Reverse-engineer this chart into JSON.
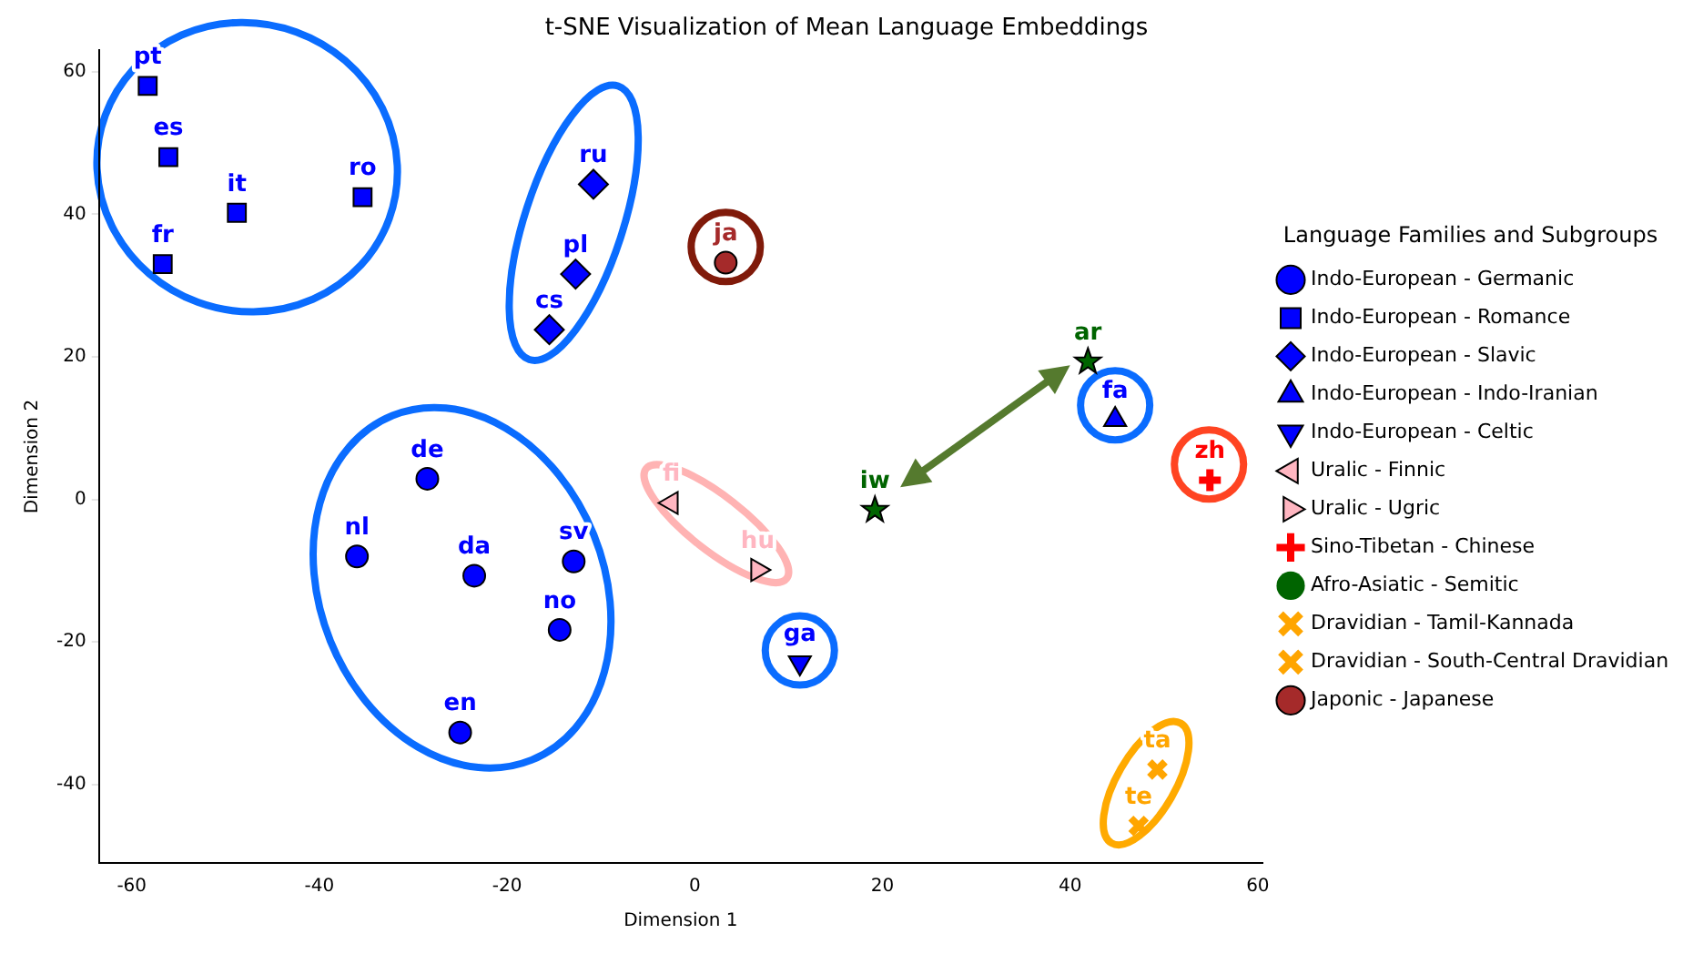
{
  "chart_data": {
    "type": "scatter",
    "title": "t-SNE Visualization of Mean Language Embeddings",
    "xlabel": "Dimension 1",
    "ylabel": "Dimension 2",
    "legend_title": "Language Families and Subgroups",
    "legend": "right",
    "grid": false,
    "xlim": [
      -63.5,
      60.5
    ],
    "ylim": [
      -51,
      63
    ],
    "xticks": [
      -60,
      -40,
      -20,
      0,
      20,
      40,
      60
    ],
    "yticks": [
      -40,
      -20,
      0,
      20,
      40,
      60
    ],
    "series": [
      {
        "name": "Indo-European - Germanic",
        "color": "#0000ff",
        "marker": "circle",
        "x": [
          -28.5,
          -36,
          -23.5,
          -12.9,
          -14.4,
          -25
        ],
        "values": [
          2.9,
          -8,
          -10.7,
          -8.7,
          -18.3,
          -32.7
        ]
      },
      {
        "name": "Indo-European - Romance",
        "color": "#0000ff",
        "marker": "square",
        "x": [
          -58.3,
          -56.1,
          -48.8,
          -35.4,
          -56.7
        ],
        "values": [
          58,
          48,
          40.2,
          42.4,
          33
        ]
      },
      {
        "name": "Indo-European - Slavic",
        "color": "#0000ff",
        "marker": "diamond",
        "x": [
          -10.8,
          -12.7,
          -15.5
        ],
        "values": [
          44.2,
          31.6,
          23.8
        ]
      },
      {
        "name": "Indo-European - Indo-Iranian",
        "color": "#0000ff",
        "marker": "triangle",
        "x": [
          44.8
        ],
        "values": [
          11.2
        ]
      },
      {
        "name": "Indo-European - Celtic",
        "color": "#0000ff",
        "marker": "triangle-down",
        "x": [
          11.2
        ],
        "values": [
          -22.9
        ]
      },
      {
        "name": "Uralic - Finnic",
        "color": "#ffb6c1",
        "marker": "triangle-left",
        "x": [
          -2.5
        ],
        "values": [
          -0.5
        ]
      },
      {
        "name": "Uralic - Ugric",
        "color": "#ffb6c1",
        "marker": "triangle-right",
        "x": [
          6.7
        ],
        "values": [
          -9.9
        ]
      },
      {
        "name": "Sino-Tibetan - Chinese",
        "color": "#ff0000",
        "marker": "cross",
        "x": [
          54.9
        ],
        "values": [
          2.7
        ]
      },
      {
        "name": "Afro-Asiatic - Semitic",
        "color": "#006400",
        "marker": "star",
        "x": [
          19.2,
          41.9
        ],
        "values": [
          -1.5,
          19.3
        ]
      },
      {
        "name": "Dravidian - Tamil-Kannada",
        "color": "#ffa500",
        "marker": "x",
        "x": [
          49.3
        ],
        "values": [
          -37.9
        ]
      },
      {
        "name": "Dravidian - South-Central Dravidian",
        "color": "#ffa500",
        "marker": "x",
        "x": [
          47.3
        ],
        "values": [
          -45.8
        ]
      },
      {
        "name": "Japonic - Japanese",
        "color": "#a52a2a",
        "marker": "circle",
        "x": [
          3.3
        ],
        "values": [
          33.2
        ]
      }
    ],
    "annotations": [
      {
        "text": "de",
        "x": -28.5,
        "y": 2.9
      },
      {
        "text": "nl",
        "x": -36,
        "y": -8
      },
      {
        "text": "da",
        "x": -23.5,
        "y": -10.7
      },
      {
        "text": "sv",
        "x": -12.9,
        "y": -8.7
      },
      {
        "text": "no",
        "x": -14.4,
        "y": -18.3
      },
      {
        "text": "en",
        "x": -25,
        "y": -32.7
      },
      {
        "text": "pt",
        "x": -58.3,
        "y": 58
      },
      {
        "text": "es",
        "x": -56.1,
        "y": 48
      },
      {
        "text": "it",
        "x": -48.8,
        "y": 40.2
      },
      {
        "text": "ro",
        "x": -35.4,
        "y": 42.4
      },
      {
        "text": "fr",
        "x": -56.7,
        "y": 33
      },
      {
        "text": "ru",
        "x": -10.8,
        "y": 44.2
      },
      {
        "text": "pl",
        "x": -12.7,
        "y": 31.6
      },
      {
        "text": "cs",
        "x": -15.5,
        "y": 23.8
      },
      {
        "text": "fa",
        "x": 44.8,
        "y": 11.2
      },
      {
        "text": "ga",
        "x": 11.2,
        "y": -22.9
      },
      {
        "text": "fi",
        "x": -2.5,
        "y": -0.5
      },
      {
        "text": "hu",
        "x": 6.7,
        "y": -9.9
      },
      {
        "text": "zh",
        "x": 54.9,
        "y": 2.7
      },
      {
        "text": "iw",
        "x": 19.2,
        "y": -1.5
      },
      {
        "text": "ar",
        "x": 41.9,
        "y": 19.3
      },
      {
        "text": "ta",
        "x": 49.3,
        "y": -37.9
      },
      {
        "text": "te",
        "x": 47.3,
        "y": -45.8
      },
      {
        "text": "ja",
        "x": 3.3,
        "y": 33.2
      }
    ]
  }
}
